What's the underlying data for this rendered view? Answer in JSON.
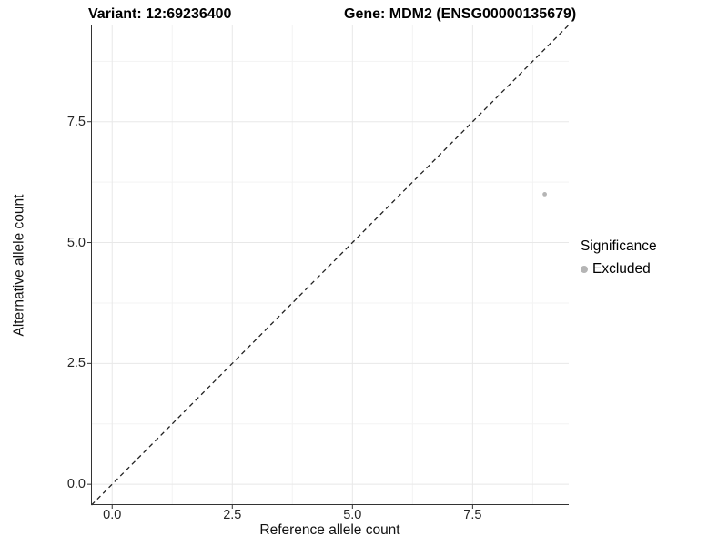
{
  "titles": {
    "variant": "Variant: 12:69236400",
    "gene": "Gene: MDM2 (ENSG00000135679)"
  },
  "chart_data": {
    "type": "scatter",
    "xlabel": "Reference allele count",
    "ylabel": "Alternative allele count",
    "xlim": [
      -0.44,
      9.5
    ],
    "ylim": [
      -0.43,
      9.49
    ],
    "x_ticks": [
      0.0,
      2.5,
      5.0,
      7.5
    ],
    "x_tick_labels": [
      "0.0",
      "2.5",
      "5.0",
      "7.5"
    ],
    "y_ticks": [
      0.0,
      2.5,
      5.0,
      7.5
    ],
    "y_tick_labels": [
      "0.0",
      "2.5",
      "5.0",
      "7.5"
    ],
    "x_minor_ticks": [
      1.25,
      3.75,
      6.25,
      8.75
    ],
    "y_minor_ticks": [
      1.25,
      3.75,
      6.25,
      8.75
    ],
    "grid": true,
    "legend_position": "right",
    "series": [
      {
        "name": "Excluded",
        "color": "#b5b5b5",
        "points": [
          {
            "x": 9,
            "y": 6
          }
        ]
      }
    ],
    "reference_line": {
      "kind": "identity y=x",
      "style": "dashed",
      "color": "#222222"
    },
    "legend": {
      "title": "Significance",
      "items": [
        {
          "label": "Excluded",
          "color": "#b5b5b5"
        }
      ]
    }
  },
  "colors": {
    "background": "#ffffff",
    "major_grid": "#e8e8e8",
    "minor_grid": "#f3f3f3",
    "axis_line": "#333333",
    "tick_text": "#262626"
  }
}
